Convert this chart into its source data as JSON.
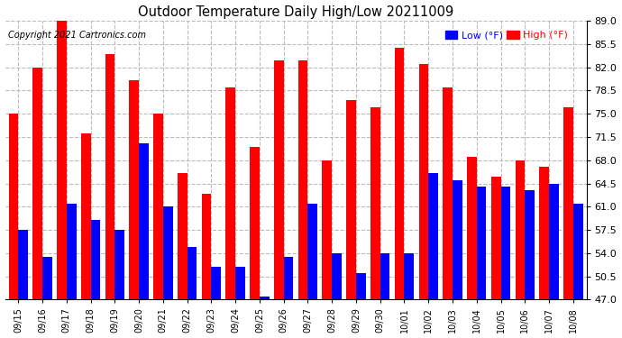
{
  "title": "Outdoor Temperature Daily High/Low 20211009",
  "copyright": "Copyright 2021 Cartronics.com",
  "legend_low_label": "Low (°F)",
  "legend_high_label": "High (°F)",
  "ylabel_right_ticks": [
    47.0,
    50.5,
    54.0,
    57.5,
    61.0,
    64.5,
    68.0,
    71.5,
    75.0,
    78.5,
    82.0,
    85.5,
    89.0
  ],
  "ylim": [
    47.0,
    89.0
  ],
  "categories": [
    "09/15",
    "09/16",
    "09/17",
    "09/18",
    "09/19",
    "09/20",
    "09/21",
    "09/22",
    "09/23",
    "09/24",
    "09/25",
    "09/26",
    "09/27",
    "09/28",
    "09/29",
    "09/30",
    "10/01",
    "10/02",
    "10/03",
    "10/04",
    "10/05",
    "10/06",
    "10/07",
    "10/08"
  ],
  "high_values": [
    75.0,
    82.0,
    89.0,
    72.0,
    84.0,
    80.0,
    75.0,
    66.0,
    63.0,
    79.0,
    70.0,
    83.0,
    83.0,
    68.0,
    77.0,
    76.0,
    85.0,
    82.5,
    79.0,
    68.5,
    65.5,
    68.0,
    67.0,
    76.0
  ],
  "low_values": [
    57.5,
    53.5,
    61.5,
    59.0,
    57.5,
    70.5,
    61.0,
    55.0,
    52.0,
    52.0,
    47.5,
    53.5,
    61.5,
    54.0,
    51.0,
    54.0,
    54.0,
    66.0,
    65.0,
    64.0,
    64.0,
    63.5,
    64.5,
    61.5
  ],
  "high_color": "#ff0000",
  "low_color": "#0000ff",
  "bg_color": "#ffffff",
  "grid_color": "#bbbbbb",
  "title_color": "#000000",
  "bar_width": 0.4,
  "ybase": 47.0
}
